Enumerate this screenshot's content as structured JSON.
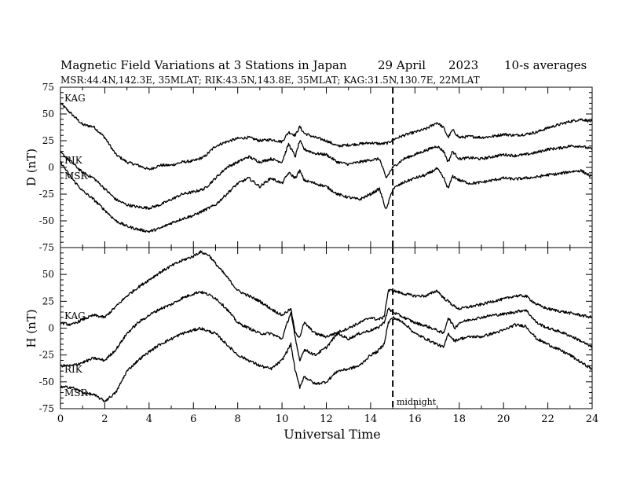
{
  "title": {
    "main": "Magnetic Field Variations at 3 Stations in Japan",
    "date_day": "29 April",
    "date_year": "2023",
    "averaging": "10-s averages",
    "stations_line": "MSR:44.4N,142.3E, 35MLAT;  RIK:43.5N,143.8E, 35MLAT;  KAG:31.5N,130.7E, 22MLAT"
  },
  "colors": {
    "axis": "#000000",
    "trace": "#000000",
    "background": "#ffffff"
  },
  "chart_data": [
    {
      "type": "line",
      "panel": "D",
      "ylabel": "D (nT)",
      "xlabel": "",
      "xlim": [
        0,
        24
      ],
      "ylim": [
        -75,
        75
      ],
      "yticks": [
        -75,
        -50,
        -25,
        0,
        25,
        50,
        75
      ],
      "grid": false,
      "marker_line": {
        "x": 15,
        "style": "dashed"
      },
      "series": [
        {
          "name": "KAG",
          "x": [
            0,
            0.5,
            1,
            1.5,
            2,
            2.5,
            3,
            3.5,
            4,
            4.5,
            5,
            5.5,
            6,
            6.5,
            7,
            7.5,
            8,
            8.5,
            9,
            9.5,
            10,
            10.3,
            10.6,
            10.8,
            11,
            11.5,
            12,
            12.5,
            13,
            13.5,
            14,
            14.5,
            14.8,
            15,
            15.5,
            16,
            16.5,
            17,
            17.3,
            17.5,
            17.7,
            18,
            18.5,
            19,
            19.5,
            20,
            20.5,
            21,
            21.5,
            22,
            22.5,
            23,
            23.5,
            24
          ],
          "values": [
            60,
            50,
            40,
            38,
            28,
            12,
            5,
            2,
            -2,
            2,
            2,
            5,
            6,
            10,
            20,
            24,
            27,
            28,
            25,
            26,
            24,
            33,
            30,
            38,
            32,
            28,
            25,
            20,
            21,
            22,
            23,
            22,
            23,
            26,
            30,
            33,
            36,
            42,
            37,
            28,
            35,
            28,
            29,
            28,
            29,
            31,
            30,
            31,
            33,
            37,
            40,
            43,
            45,
            43
          ]
        },
        {
          "name": "RIK",
          "x": [
            0,
            0.5,
            1,
            1.5,
            2,
            2.5,
            3,
            3.5,
            4,
            4.5,
            5,
            5.5,
            6,
            6.5,
            7,
            7.5,
            8,
            8.5,
            9,
            9.5,
            10,
            10.3,
            10.6,
            10.8,
            11,
            11.5,
            12,
            12.5,
            13,
            13.5,
            14,
            14.4,
            14.7,
            15,
            15.5,
            16,
            16.5,
            17,
            17.3,
            17.5,
            17.7,
            18,
            18.5,
            19,
            19.5,
            20,
            20.5,
            21,
            21.5,
            22,
            22.5,
            23,
            23.5,
            24
          ],
          "values": [
            14,
            5,
            -5,
            -10,
            -20,
            -30,
            -35,
            -37,
            -38,
            -35,
            -30,
            -25,
            -23,
            -20,
            -10,
            0,
            5,
            10,
            5,
            8,
            5,
            22,
            10,
            25,
            17,
            13,
            12,
            5,
            3,
            5,
            7,
            8,
            -10,
            0,
            8,
            12,
            16,
            20,
            15,
            5,
            15,
            8,
            9,
            8,
            10,
            12,
            11,
            12,
            14,
            17,
            18,
            20,
            20,
            17
          ]
        },
        {
          "name": "MSR",
          "x": [
            0,
            0.5,
            1,
            1.5,
            2,
            2.5,
            3,
            3.5,
            4,
            4.5,
            5,
            5.5,
            6,
            6.5,
            7,
            7.5,
            8,
            8.5,
            9,
            9.5,
            10,
            10.3,
            10.6,
            10.8,
            11,
            11.5,
            12,
            12.5,
            13,
            13.5,
            14,
            14.4,
            14.7,
            15,
            15.5,
            16,
            16.5,
            17,
            17.3,
            17.5,
            17.7,
            18,
            18.5,
            19,
            19.5,
            20,
            20.5,
            21,
            21.5,
            22,
            22.5,
            23,
            23.5,
            24
          ],
          "values": [
            5,
            -10,
            -22,
            -30,
            -40,
            -50,
            -55,
            -58,
            -60,
            -57,
            -52,
            -48,
            -45,
            -40,
            -35,
            -25,
            -15,
            -10,
            -18,
            -10,
            -15,
            -5,
            -10,
            -3,
            -12,
            -15,
            -18,
            -25,
            -28,
            -30,
            -25,
            -20,
            -40,
            -20,
            -14,
            -10,
            -7,
            -1,
            -10,
            -20,
            -8,
            -12,
            -15,
            -14,
            -12,
            -10,
            -11,
            -10,
            -9,
            -7,
            -6,
            -4,
            -3,
            -9
          ]
        }
      ]
    },
    {
      "type": "line",
      "panel": "H",
      "ylabel": "H (nT)",
      "xlabel": "Universal Time",
      "xlim": [
        0,
        24
      ],
      "xticks": [
        0,
        2,
        4,
        6,
        8,
        10,
        12,
        14,
        16,
        18,
        20,
        22,
        24
      ],
      "ylim": [
        -75,
        75
      ],
      "yticks": [
        -75,
        -50,
        -25,
        0,
        25,
        50
      ],
      "grid": false,
      "marker_line": {
        "x": 15,
        "style": "dashed",
        "label": "midnight"
      },
      "series": [
        {
          "name": "KAG",
          "x": [
            0,
            0.5,
            1,
            1.5,
            2,
            2.5,
            3,
            3.5,
            4,
            4.5,
            5,
            5.5,
            6,
            6.3,
            6.7,
            7,
            7.5,
            8,
            8.5,
            9,
            9.5,
            10,
            10.4,
            10.6,
            10.8,
            11,
            11.5,
            12,
            12.5,
            13,
            13.5,
            14,
            14.3,
            14.6,
            14.8,
            15,
            15.5,
            16,
            16.5,
            17,
            17.3,
            17.5,
            17.8,
            18,
            18.5,
            19,
            19.5,
            20,
            20.5,
            21,
            21.5,
            22,
            22.5,
            23,
            23.5,
            24
          ],
          "values": [
            5,
            3,
            8,
            12,
            10,
            20,
            30,
            38,
            45,
            52,
            58,
            63,
            67,
            71,
            68,
            60,
            48,
            35,
            30,
            25,
            18,
            12,
            18,
            -5,
            -8,
            5,
            -5,
            -8,
            -4,
            0,
            5,
            10,
            8,
            10,
            35,
            35,
            32,
            30,
            30,
            35,
            28,
            25,
            20,
            18,
            20,
            22,
            25,
            27,
            30,
            30,
            22,
            18,
            16,
            14,
            12,
            10
          ]
        },
        {
          "name": "RIK",
          "x": [
            0,
            0.5,
            1,
            1.5,
            2,
            2.5,
            3,
            3.5,
            4,
            4.5,
            5,
            5.5,
            6,
            6.3,
            6.7,
            7,
            7.5,
            8,
            8.5,
            9,
            9.5,
            10,
            10.4,
            10.6,
            10.8,
            11,
            11.5,
            12,
            12.5,
            13,
            13.5,
            14,
            14.3,
            14.6,
            14.8,
            15,
            15.5,
            16,
            16.5,
            17,
            17.3,
            17.5,
            17.8,
            18,
            18.5,
            19,
            19.5,
            20,
            20.5,
            21,
            21.5,
            22,
            22.5,
            23,
            23.5,
            24
          ],
          "values": [
            -35,
            -35,
            -32,
            -28,
            -30,
            -20,
            -5,
            5,
            12,
            18,
            22,
            28,
            32,
            34,
            31,
            28,
            18,
            5,
            0,
            -5,
            -5,
            -10,
            15,
            -10,
            -30,
            -20,
            -25,
            -18,
            -5,
            -10,
            -5,
            -2,
            0,
            5,
            18,
            15,
            10,
            5,
            2,
            -2,
            -5,
            10,
            0,
            5,
            8,
            10,
            12,
            13,
            15,
            17,
            5,
            0,
            -3,
            -7,
            -12,
            -18
          ]
        },
        {
          "name": "MSR",
          "x": [
            0,
            0.5,
            1,
            1.5,
            2,
            2.5,
            3,
            3.5,
            4,
            4.5,
            5,
            5.5,
            6,
            6.3,
            6.7,
            7,
            7.5,
            8,
            8.5,
            9,
            9.5,
            10,
            10.4,
            10.6,
            10.8,
            11,
            11.5,
            12,
            12.5,
            13,
            13.5,
            14,
            14.3,
            14.6,
            14.8,
            15,
            15.5,
            16,
            16.5,
            17,
            17.3,
            17.5,
            17.8,
            18,
            18.5,
            19,
            19.5,
            20,
            20.5,
            21,
            21.5,
            22,
            22.5,
            23,
            23.5,
            24
          ],
          "values": [
            -55,
            -55,
            -60,
            -62,
            -68,
            -60,
            -40,
            -30,
            -22,
            -15,
            -10,
            -5,
            -2,
            0,
            -3,
            -5,
            -15,
            -25,
            -30,
            -35,
            -38,
            -30,
            -15,
            -40,
            -55,
            -45,
            -52,
            -50,
            -40,
            -38,
            -35,
            -25,
            -22,
            -15,
            5,
            10,
            5,
            -5,
            -10,
            -15,
            -18,
            -5,
            -12,
            -10,
            -8,
            -8,
            -5,
            -2,
            3,
            2,
            -10,
            -15,
            -20,
            -25,
            -32,
            -38
          ]
        }
      ]
    }
  ]
}
